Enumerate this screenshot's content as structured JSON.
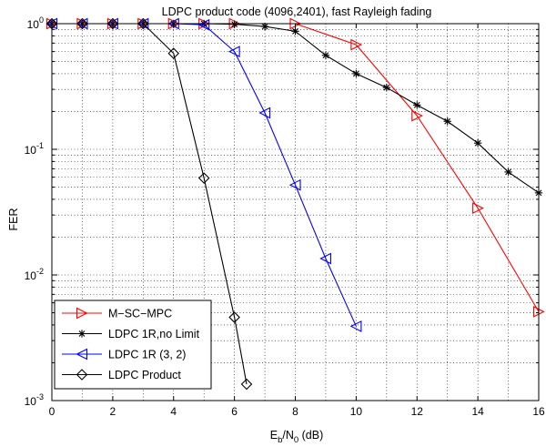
{
  "chart_data": {
    "type": "line",
    "title": "LDPC product code (4096,2401), fast Rayleigh fading",
    "xlabel": {
      "main": "E",
      "sub1": "b",
      "mid": "/N",
      "sub2": "0",
      "unit": " (dB)"
    },
    "ylabel": "FER",
    "xlim": [
      0,
      16
    ],
    "ylim": [
      0.001,
      1
    ],
    "yscale": "log",
    "grid": true,
    "legend_position": "bottom-left",
    "xticks": [
      0,
      2,
      4,
      6,
      8,
      10,
      12,
      14,
      16
    ],
    "yticks": [
      {
        "value": 1,
        "base": "10",
        "exp": "0"
      },
      {
        "value": 0.1,
        "base": "10",
        "exp": "-1"
      },
      {
        "value": 0.01,
        "base": "10",
        "exp": "-2"
      },
      {
        "value": 0.001,
        "base": "10",
        "exp": "-3"
      }
    ],
    "series": [
      {
        "name": "M−SC−MPC",
        "color": "#ff0000",
        "marker": "triangle-right",
        "x": [
          0,
          1,
          2,
          3,
          4,
          5,
          6,
          8,
          10,
          12,
          14,
          16
        ],
        "y": [
          1,
          1,
          1,
          1,
          1,
          1,
          1,
          1,
          0.68,
          0.185,
          0.034,
          0.0051
        ]
      },
      {
        "name": "LDPC 1R,no Limit",
        "color": "#000000",
        "marker": "asterisk",
        "x": [
          0,
          1,
          2,
          3,
          4,
          5,
          6,
          7,
          8,
          9,
          10,
          11,
          12,
          13,
          14,
          15,
          16
        ],
        "y": [
          1,
          1,
          1,
          1,
          1,
          1,
          0.99,
          0.95,
          0.87,
          0.56,
          0.4,
          0.31,
          0.225,
          0.167,
          0.112,
          0.066,
          0.045
        ]
      },
      {
        "name": "LDPC 1R (3, 2)",
        "color": "#0000ff",
        "marker": "triangle-left",
        "x": [
          0,
          1,
          2,
          3,
          4,
          5,
          6,
          7,
          8,
          9,
          10
        ],
        "y": [
          1,
          1,
          1,
          1,
          1,
          0.98,
          0.6,
          0.195,
          0.052,
          0.0135,
          0.0039
        ]
      },
      {
        "name": "LDPC Product",
        "color": "#000000",
        "marker": "diamond",
        "x": [
          0,
          1,
          2,
          3,
          4,
          5,
          6,
          6.4
        ],
        "y": [
          1,
          1,
          1,
          1,
          0.58,
          0.059,
          0.0046,
          0.00135
        ]
      }
    ]
  }
}
